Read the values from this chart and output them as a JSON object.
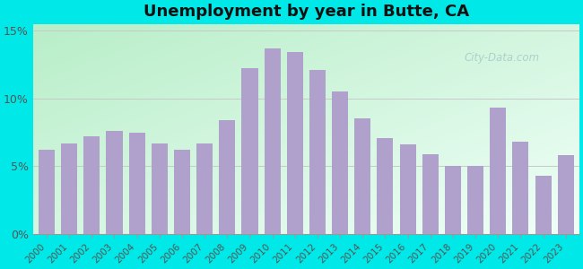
{
  "title": "Unemployment by year in Butte, CA",
  "years": [
    2000,
    2001,
    2002,
    2003,
    2004,
    2005,
    2006,
    2007,
    2008,
    2009,
    2010,
    2011,
    2012,
    2013,
    2014,
    2015,
    2016,
    2017,
    2018,
    2019,
    2020,
    2021,
    2022,
    2023
  ],
  "values": [
    6.2,
    6.7,
    7.2,
    7.6,
    7.5,
    6.7,
    6.2,
    6.7,
    8.4,
    12.2,
    13.7,
    13.4,
    12.1,
    10.5,
    8.5,
    7.1,
    6.6,
    5.9,
    5.0,
    5.0,
    9.3,
    6.8,
    4.3,
    5.8
  ],
  "bar_color": "#b0a0cc",
  "yticks": [
    0,
    5,
    10,
    15
  ],
  "ytick_labels": [
    "0%",
    "5%",
    "10%",
    "15%"
  ],
  "ylim": [
    0,
    15.5
  ],
  "outer_bg": "#00e8e8",
  "title_fontsize": 13,
  "watermark_text": "City-Data.com",
  "grid_color": "#c8c8c8",
  "grad_topleft": "#b8eec8",
  "grad_bottomright": "#f0fff8"
}
